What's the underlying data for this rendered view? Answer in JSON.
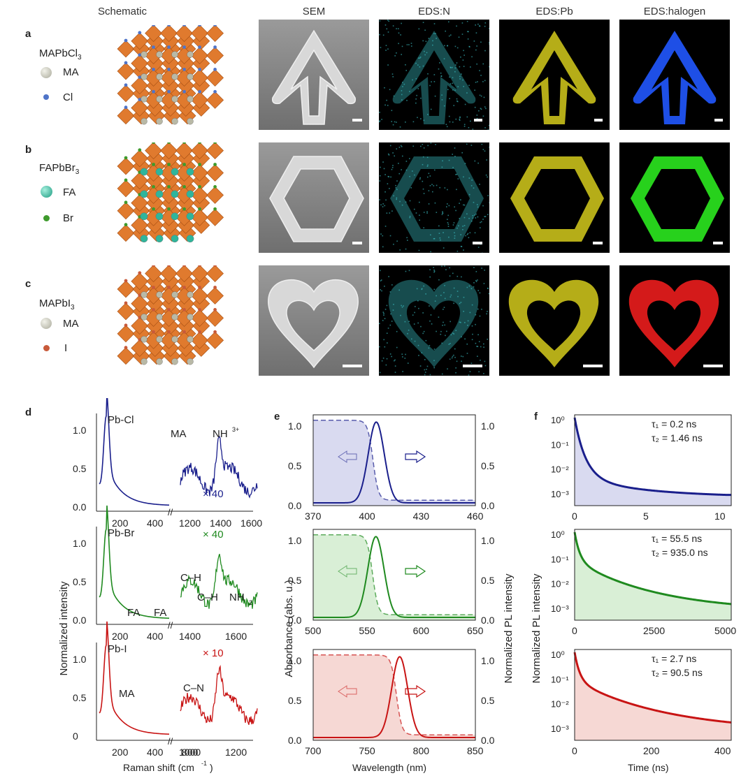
{
  "headers": {
    "schematic": "Schematic",
    "sem": "SEM",
    "eds_n": "EDS:N",
    "eds_pb": "EDS:Pb",
    "eds_halogen": "EDS:halogen"
  },
  "rows": [
    {
      "label": "a",
      "formula": "MAPbCl",
      "sub": "3",
      "legend": [
        {
          "name": "MA",
          "color": "#c8c8b8"
        },
        {
          "name": "Cl",
          "color": "#4f74c8"
        }
      ],
      "shape": "arrow",
      "halogen_color": "#1e4fe6",
      "atom_color": "#4f74c8",
      "big_color": "#b9b9a6"
    },
    {
      "label": "b",
      "formula": "FAPbBr",
      "sub": "3",
      "legend": [
        {
          "name": "FA",
          "color": "#2fb59b"
        },
        {
          "name": "Br",
          "color": "#3e9a2c"
        }
      ],
      "shape": "hexagon",
      "halogen_color": "#27d11c",
      "atom_color": "#3e9a2c",
      "big_color": "#2fb59b"
    },
    {
      "label": "c",
      "formula": "MAPbI",
      "sub": "3",
      "legend": [
        {
          "name": "MA",
          "color": "#c8c8b8"
        },
        {
          "name": "I",
          "color": "#c85a3a"
        }
      ],
      "shape": "heart",
      "halogen_color": "#d41a1a",
      "atom_color": "#c85a3a",
      "big_color": "#b9b9a6"
    }
  ],
  "panel_labels": {
    "d": "d",
    "e": "e",
    "f": "f"
  },
  "raman": {
    "ylabel": "Normalized intensity",
    "xlabel": "Raman shift (cm",
    "xlabel_sup": "-1",
    "xlabel_end": ")",
    "break_mark": "//",
    "panels": [
      {
        "color": "#1a1f8c",
        "peak": "Pb-Cl",
        "annotations": [
          "MA",
          "NH",
          "× 40"
        ],
        "nh_sup": "3",
        "nh_sup2": "+",
        "left_ticks": [
          "200",
          "400"
        ],
        "right_ticks": [
          "1200",
          "1400",
          "1600"
        ],
        "yticks": [
          "0.0",
          "0.5",
          "1.0"
        ]
      },
      {
        "color": "#1f8a1f",
        "peak": "Pb-Br",
        "annotations": [
          "FA",
          "FA",
          "C–H",
          "C–H",
          "NH",
          "× 40"
        ],
        "nh_sub": "2",
        "left_ticks": [
          "200",
          "400"
        ],
        "right_ticks": [
          "1400",
          "1600"
        ],
        "yticks": [
          "0.0",
          "0.5",
          "1.0"
        ]
      },
      {
        "color": "#c81414",
        "peak": "Pb-I",
        "annotations": [
          "MA",
          "C–N",
          "× 10"
        ],
        "left_ticks": [
          "200",
          "400",
          "800"
        ],
        "right_ticks": [
          "1000",
          "1200"
        ],
        "yticks": [
          "0",
          "0.5",
          "1.0"
        ]
      }
    ]
  },
  "absorbance": {
    "ylabel": "Absorbance (abs. u.)",
    "ylabel_right": "Normalized PL intensity",
    "xlabel": "Wavelength (nm)",
    "panels": [
      {
        "color": "#1a1f8c",
        "fill": "#d9daf0",
        "xticks": [
          "370",
          "400",
          "430",
          "460"
        ],
        "xlim": [
          370,
          460
        ],
        "yticks": [
          "0.0",
          "0.5",
          "1.0"
        ],
        "peak": 405
      },
      {
        "color": "#1f8a1f",
        "fill": "#d9efd6",
        "xticks": [
          "500",
          "550",
          "600",
          "650"
        ],
        "xlim": [
          500,
          650
        ],
        "yticks": [
          "0.0",
          "0.5",
          "1.0"
        ],
        "peak": 558
      },
      {
        "color": "#c81414",
        "fill": "#f6d8d4",
        "xticks": [
          "700",
          "750",
          "800",
          "850"
        ],
        "xlim": [
          700,
          850
        ],
        "yticks": [
          "0.0",
          "0.5",
          "1.0"
        ],
        "peak": 780
      }
    ]
  },
  "trpl": {
    "ylabel": "Normalized PL intensity",
    "xlabel": "Time (ns)",
    "panels": [
      {
        "color": "#1a1f8c",
        "fill": "#d9daf0",
        "tau1": "τ₁ = 0.2 ns",
        "tau2": "τ₂ = 1.46 ns",
        "xticks": [
          "0",
          "5",
          "10"
        ],
        "yticks": [
          "10⁰",
          "10⁻¹",
          "10⁻²",
          "10⁻³"
        ]
      },
      {
        "color": "#1f8a1f",
        "fill": "#d9efd6",
        "tau1": "τ₁ = 55.5 ns",
        "tau2": "τ₂ = 935.0 ns",
        "xticks": [
          "0",
          "2500",
          "5000"
        ],
        "yticks": [
          "10⁰",
          "10⁻¹",
          "10⁻²",
          "10⁻³"
        ]
      },
      {
        "color": "#c81414",
        "fill": "#f6d8d4",
        "tau1": "τ₁ = 2.7 ns",
        "tau2": "τ₂ = 90.5 ns",
        "xticks": [
          "0",
          "200",
          "400"
        ],
        "yticks": [
          "10⁰",
          "10⁻¹",
          "10⁻²",
          "10⁻³"
        ]
      }
    ]
  }
}
